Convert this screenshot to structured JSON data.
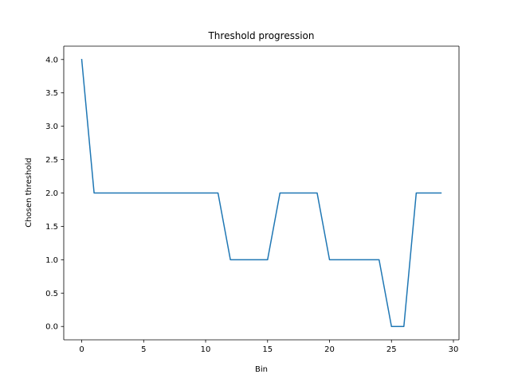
{
  "chart_data": {
    "type": "line",
    "title": "Threshold progression",
    "xlabel": "Bin",
    "ylabel": "Chosen threshold",
    "xlim": [
      -1.45,
      30.45
    ],
    "ylim": [
      -0.2,
      4.2
    ],
    "xticks": [
      0,
      5,
      10,
      15,
      20,
      25,
      30
    ],
    "xtick_labels": [
      "0",
      "5",
      "10",
      "15",
      "20",
      "25",
      "30"
    ],
    "yticks": [
      0.0,
      0.5,
      1.0,
      1.5,
      2.0,
      2.5,
      3.0,
      3.5,
      4.0
    ],
    "ytick_labels": [
      "0.0",
      "0.5",
      "1.0",
      "1.5",
      "2.0",
      "2.5",
      "3.0",
      "3.5",
      "4.0"
    ],
    "grid": false,
    "series": [
      {
        "color": "#1f77b4",
        "x": [
          0,
          1,
          2,
          3,
          4,
          5,
          6,
          7,
          8,
          9,
          10,
          11,
          12,
          13,
          14,
          15,
          16,
          17,
          18,
          19,
          20,
          21,
          22,
          23,
          24,
          25,
          26,
          27,
          28,
          29
        ],
        "y": [
          4,
          2,
          2,
          2,
          2,
          2,
          2,
          2,
          2,
          2,
          2,
          2,
          1,
          1,
          1,
          1,
          2,
          2,
          2,
          2,
          1,
          1,
          1,
          1,
          1,
          0,
          0,
          2,
          2,
          2
        ]
      }
    ]
  }
}
